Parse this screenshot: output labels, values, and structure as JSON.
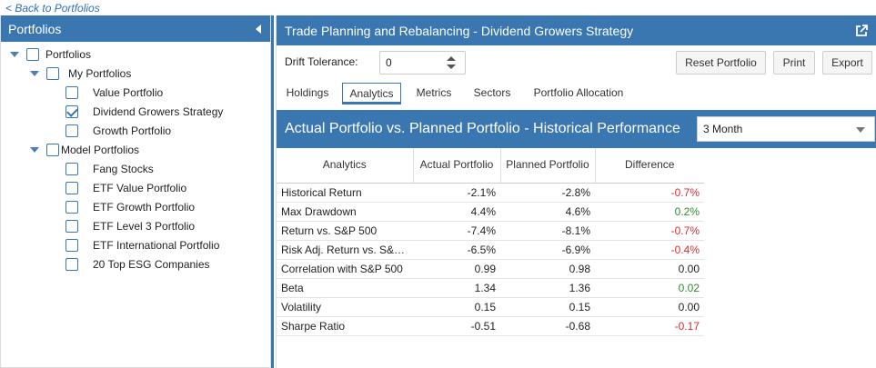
{
  "back_link": "< Back to Portfolios",
  "left_panel": {
    "title": "Portfolios",
    "tree": [
      {
        "label": "Portfolios",
        "checked": false
      },
      {
        "label": "My Portfolios",
        "checked": false
      },
      {
        "label": "Value Portfolio",
        "checked": false
      },
      {
        "label": "Dividend Growers Strategy",
        "checked": true
      },
      {
        "label": "Growth Portfolio",
        "checked": false
      },
      {
        "label": "Model Portfolios",
        "checked": false
      },
      {
        "label": "Fang Stocks",
        "checked": false
      },
      {
        "label": "ETF Value Portfolio",
        "checked": false
      },
      {
        "label": "ETF Growth Portfolio",
        "checked": false
      },
      {
        "label": "ETF Level 3 Portfolio",
        "checked": false
      },
      {
        "label": "ETF International Portfolio",
        "checked": false
      },
      {
        "label": "20 Top ESG Companies",
        "checked": false
      }
    ]
  },
  "right_panel": {
    "title": "Trade Planning and Rebalancing - Dividend Growers Strategy",
    "drift_label": "Drift Tolerance:",
    "drift_value": "0",
    "buttons": {
      "reset": "Reset Portfolio",
      "print": "Print",
      "export": "Export"
    },
    "tabs": [
      "Holdings",
      "Analytics",
      "Metrics",
      "Sectors",
      "Portfolio Allocation"
    ],
    "active_tab": "Analytics",
    "section_title": "Actual Portfolio vs. Planned Portfolio - Historical Performance",
    "period_selected": "3 Month",
    "table": {
      "headers": [
        "Analytics",
        "Actual Portfolio",
        "Planned Portfolio",
        "Difference"
      ],
      "rows": [
        [
          "Historical Return",
          "-2.1%",
          "-2.8%",
          "-0.7%"
        ],
        [
          "Max Drawdown",
          "4.4%",
          "4.6%",
          "0.2%"
        ],
        [
          "Return vs. S&P 500",
          "-7.4%",
          "-8.1%",
          "-0.7%"
        ],
        [
          "Risk Adj. Return vs. S&…",
          "-6.5%",
          "-6.9%",
          "-0.4%"
        ],
        [
          "Correlation with S&P 500",
          "0.99",
          "0.98",
          "0.00"
        ],
        [
          "Beta",
          "1.34",
          "1.36",
          "0.02"
        ],
        [
          "Volatility",
          "0.15",
          "0.15",
          "0.00"
        ],
        [
          "Sharpe Ratio",
          "-0.51",
          "-0.68",
          "-0.17"
        ]
      ],
      "difference_status": [
        "negative",
        "positive",
        "negative",
        "negative",
        "neutral",
        "positive",
        "neutral",
        "negative"
      ]
    }
  },
  "colors": {
    "accent": "#3a76b0",
    "negative": "#d32f2f",
    "positive": "#2e8b2e"
  }
}
